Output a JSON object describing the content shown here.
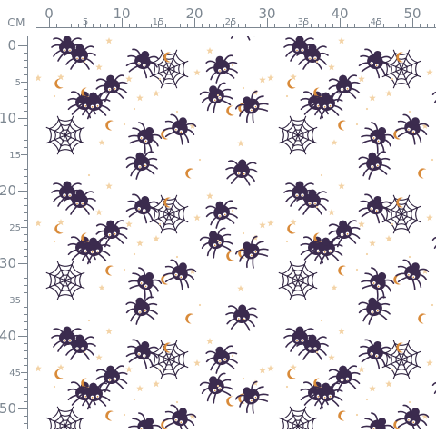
{
  "ruler": {
    "unit": "CM",
    "top_ticks": [
      "0",
      "5",
      "10",
      "15",
      "20",
      "25",
      "30",
      "35",
      "40",
      "45",
      "50"
    ],
    "left_ticks": [
      "0",
      "5",
      "10",
      "15",
      "20",
      "25",
      "30",
      "35",
      "40",
      "45",
      "50"
    ]
  },
  "pattern": {
    "motifs": [
      "spider-icon",
      "spiderweb-icon",
      "moon-icon",
      "star-icon"
    ],
    "colors": {
      "background": "#ffffff",
      "spider": "#3b2b4e",
      "web": "#2f2340",
      "moon": "#d98b3a",
      "star": "#f3d3a6",
      "ruler": "#7d8791"
    }
  }
}
